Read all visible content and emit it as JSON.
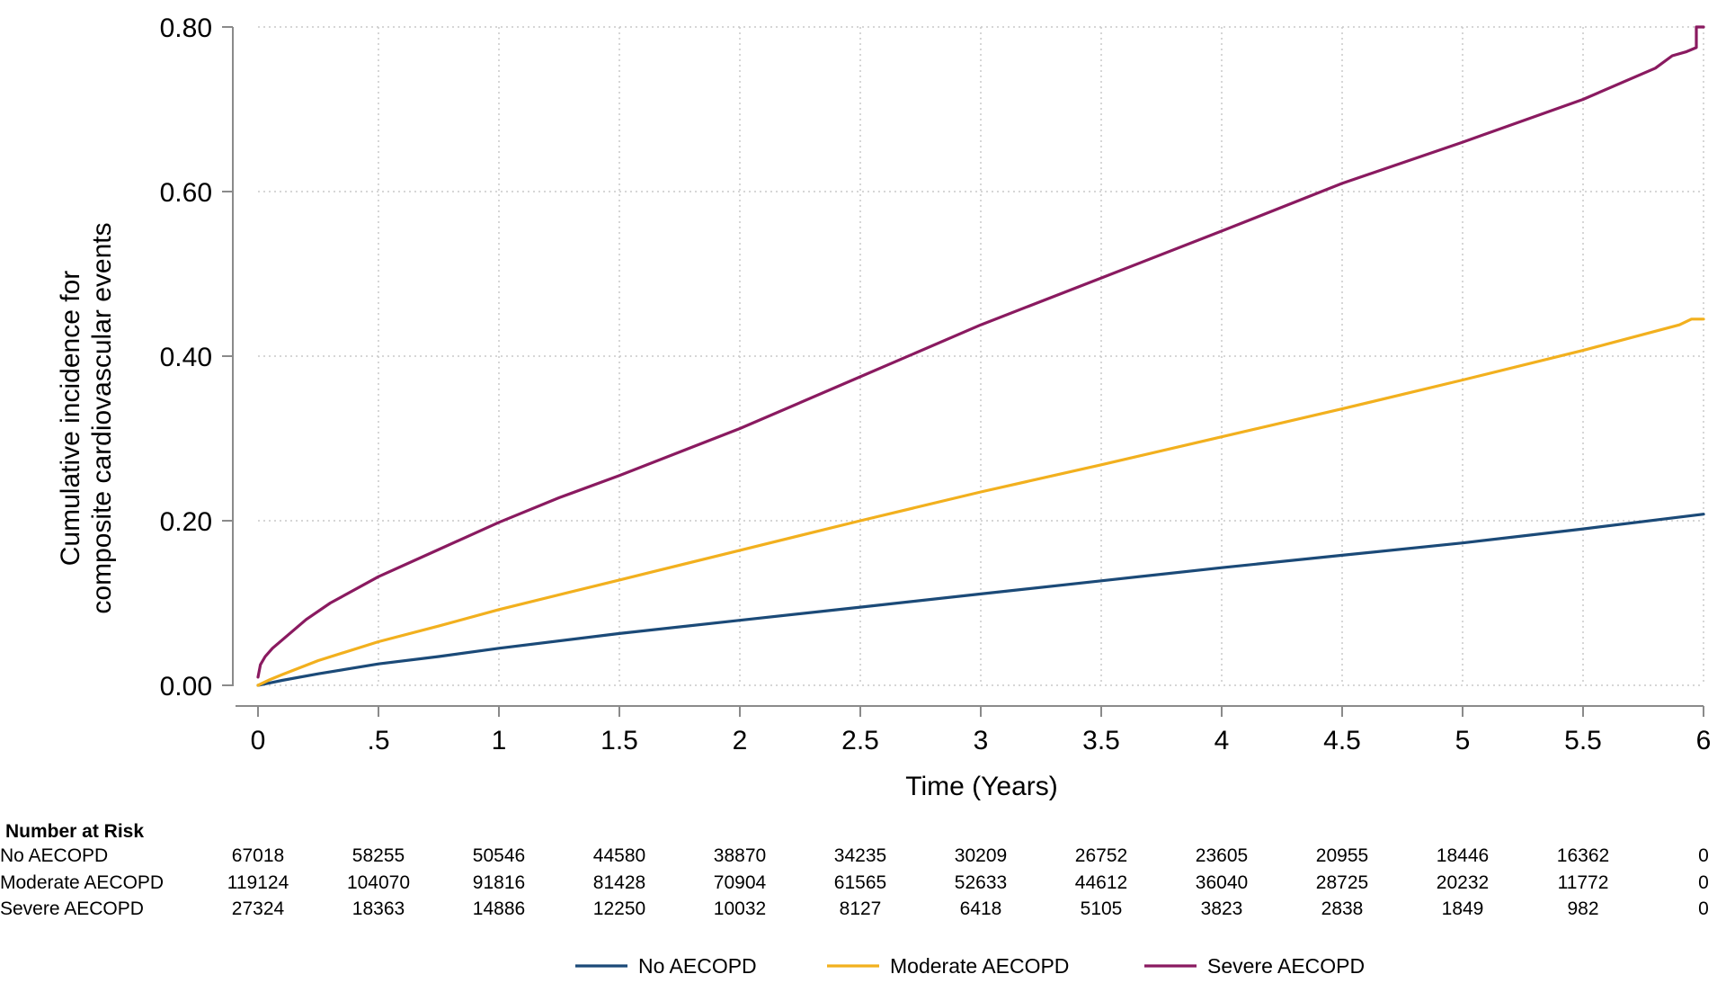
{
  "chart_data": {
    "type": "line",
    "title": "",
    "xlabel": "Time (Years)",
    "ylabel_lines": [
      "Cumulative incidence for",
      "composite cardiovascular events"
    ],
    "xlim": [
      0,
      6
    ],
    "ylim": [
      0,
      0.8
    ],
    "x_ticks": [
      0,
      0.5,
      1,
      1.5,
      2,
      2.5,
      3,
      3.5,
      4,
      4.5,
      5,
      5.5,
      6
    ],
    "x_tick_labels": [
      "0",
      ".5",
      "1",
      "1.5",
      "2",
      "2.5",
      "3",
      "3.5",
      "4",
      "4.5",
      "5",
      "5.5",
      "6"
    ],
    "y_ticks": [
      0,
      0.2,
      0.4,
      0.6,
      0.8
    ],
    "y_tick_labels": [
      "0.00",
      "0.20",
      "0.40",
      "0.60",
      "0.80"
    ],
    "grid": true,
    "legend_position": "bottom",
    "series": [
      {
        "name": "No AECOPD",
        "color": "#1b4a78",
        "x": [
          0,
          0.05,
          0.1,
          0.25,
          0.5,
          0.75,
          1,
          1.5,
          2,
          2.5,
          3,
          3.5,
          4,
          4.5,
          5,
          5.5,
          6
        ],
        "y": [
          0,
          0.003,
          0.006,
          0.014,
          0.026,
          0.035,
          0.045,
          0.063,
          0.079,
          0.095,
          0.111,
          0.127,
          0.143,
          0.158,
          0.173,
          0.19,
          0.208
        ]
      },
      {
        "name": "Moderate AECOPD",
        "color": "#f2b01e",
        "x": [
          0,
          0.05,
          0.1,
          0.25,
          0.5,
          0.75,
          1,
          1.5,
          2,
          2.5,
          3,
          3.5,
          4,
          4.5,
          5,
          5.5,
          5.9,
          5.95,
          6
        ],
        "y": [
          0,
          0.007,
          0.013,
          0.03,
          0.053,
          0.072,
          0.092,
          0.128,
          0.164,
          0.2,
          0.235,
          0.268,
          0.302,
          0.336,
          0.371,
          0.407,
          0.438,
          0.445,
          0.445
        ]
      },
      {
        "name": "Severe AECOPD",
        "color": "#8a1a60",
        "x": [
          0,
          0.01,
          0.03,
          0.06,
          0.1,
          0.2,
          0.3,
          0.5,
          0.75,
          1,
          1.25,
          1.5,
          2,
          2.5,
          3,
          3.5,
          4,
          4.5,
          5,
          5.5,
          5.8,
          5.87,
          5.87,
          5.93,
          5.93,
          5.97,
          5.97,
          6
        ],
        "y": [
          0.01,
          0.025,
          0.035,
          0.045,
          0.055,
          0.08,
          0.1,
          0.132,
          0.165,
          0.198,
          0.228,
          0.255,
          0.312,
          0.375,
          0.438,
          0.495,
          0.552,
          0.61,
          0.66,
          0.712,
          0.75,
          0.765,
          0.765,
          0.77,
          0.77,
          0.775,
          0.8,
          0.8
        ]
      }
    ],
    "risk_table": {
      "header": "Number at Risk",
      "rows": [
        {
          "label": "No AECOPD",
          "values": [
            "67018",
            "58255",
            "50546",
            "44580",
            "38870",
            "34235",
            "30209",
            "26752",
            "23605",
            "20955",
            "18446",
            "16362",
            "0"
          ]
        },
        {
          "label": "Moderate AECOPD",
          "values": [
            "119124",
            "104070",
            "91816",
            "81428",
            "70904",
            "61565",
            "52633",
            "44612",
            "36040",
            "28725",
            "20232",
            "11772",
            "0"
          ]
        },
        {
          "label": "Severe AECOPD",
          "values": [
            "27324",
            "18363",
            "14886",
            "12250",
            "10032",
            "8127",
            "6418",
            "5105",
            "3823",
            "2838",
            "1849",
            "982",
            "0"
          ]
        }
      ]
    },
    "legend": [
      "No AECOPD",
      "Moderate AECOPD",
      "Severe AECOPD"
    ]
  }
}
